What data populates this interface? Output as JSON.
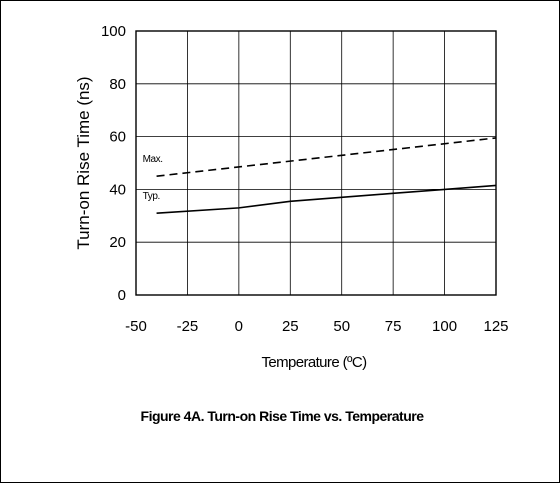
{
  "chart_data": {
    "type": "line",
    "caption": "Figure 4A. Turn-on Rise Time vs. Temperature",
    "xlabel": "Temperature (ºC)",
    "ylabel": "Turn-on Rise Time (ns)",
    "xlim": [
      -50,
      125
    ],
    "ylim": [
      0,
      100
    ],
    "xticks": [
      -50,
      -25,
      0,
      25,
      50,
      75,
      100,
      125
    ],
    "yticks": [
      0,
      20,
      40,
      60,
      80,
      100
    ],
    "grid": true,
    "series": [
      {
        "name": "Max.",
        "style": "dashed",
        "x": [
          -40,
          125
        ],
        "y": [
          45,
          59.5
        ]
      },
      {
        "name": "Typ.",
        "style": "solid",
        "x": [
          -40,
          0,
          25,
          50,
          75,
          100,
          125
        ],
        "y": [
          31,
          33,
          35.5,
          37,
          38.5,
          40,
          41.5
        ]
      }
    ]
  }
}
